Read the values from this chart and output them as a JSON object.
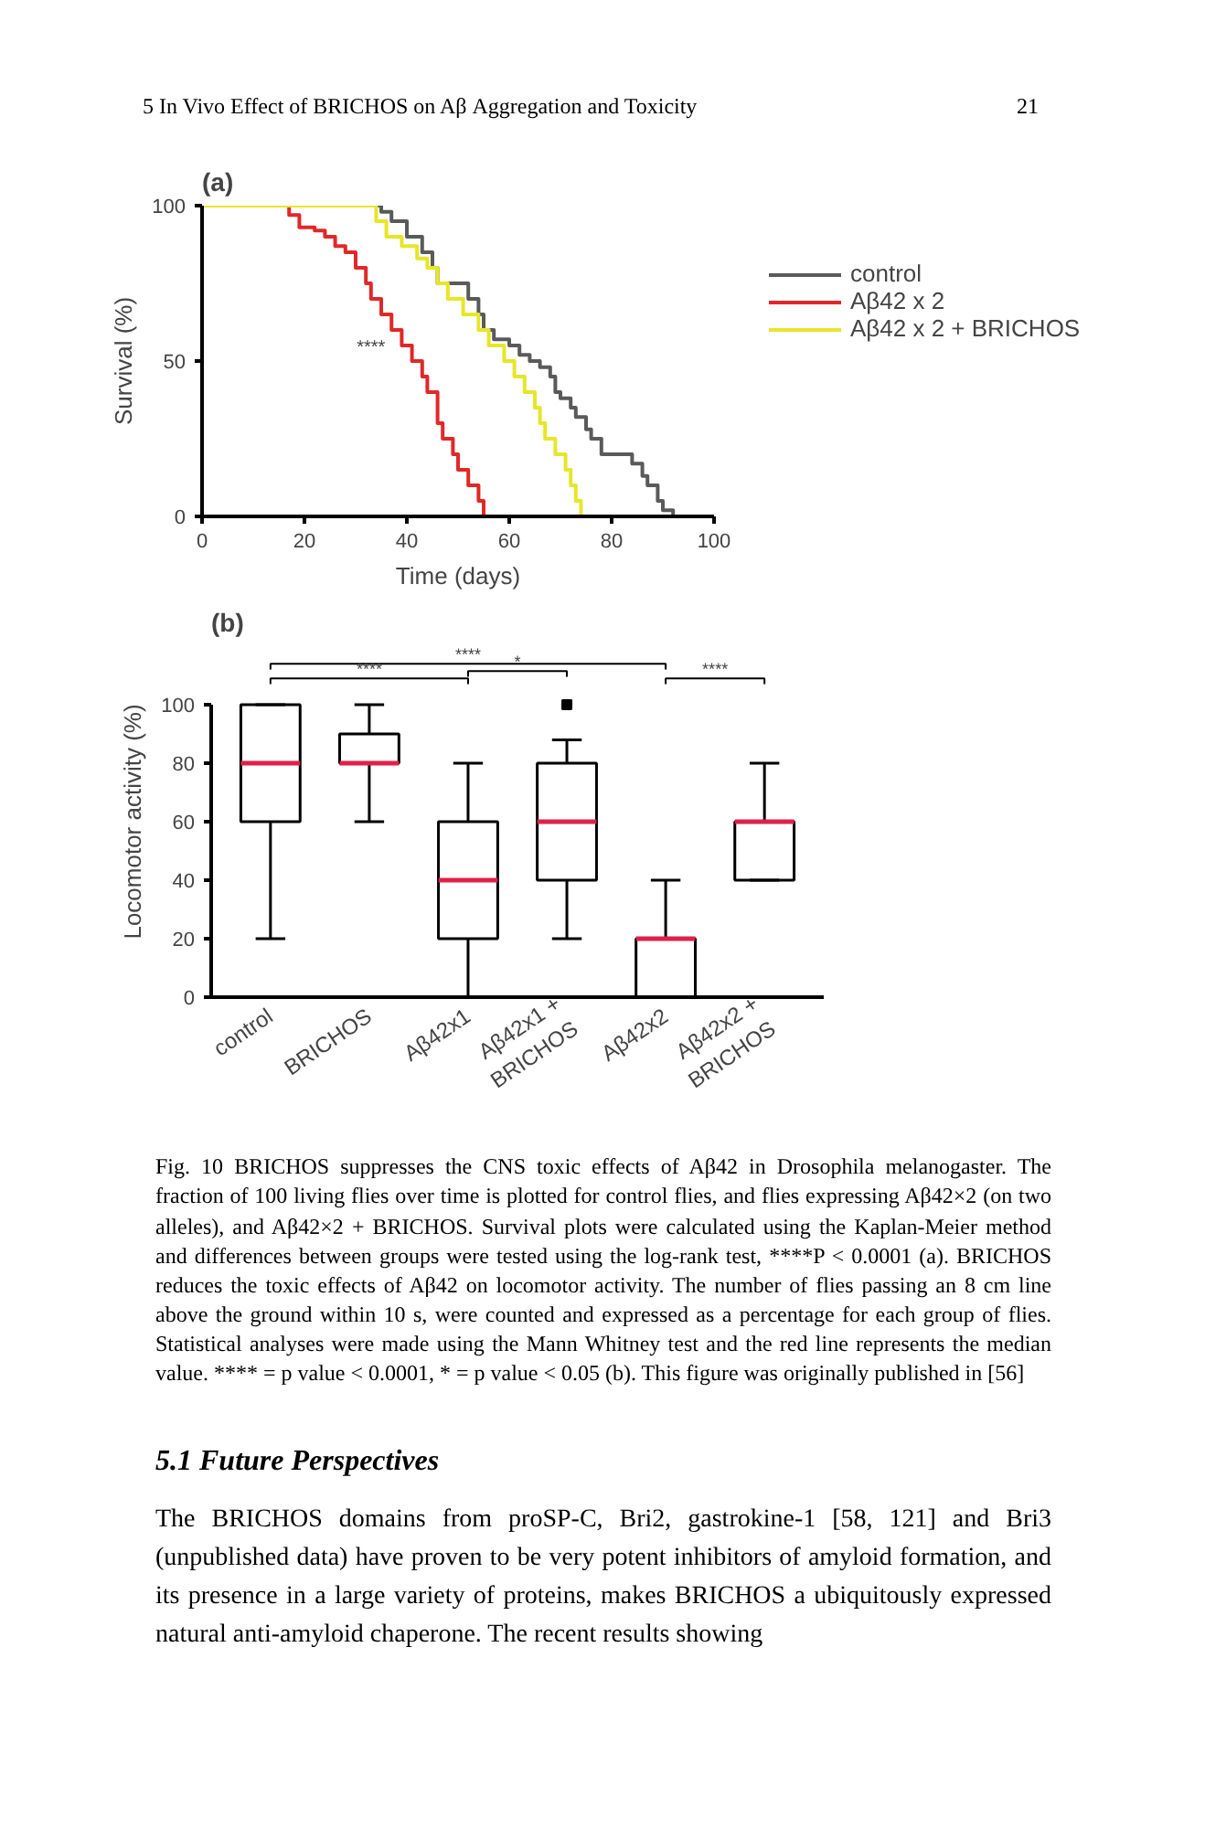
{
  "chart_data": [
    {
      "type": "step",
      "title": "(a)",
      "xlabel": "Time (days)",
      "ylabel": "Survival (%)",
      "xlim": [
        0,
        100
      ],
      "ylim": [
        0,
        100
      ],
      "xticks": [
        0,
        20,
        40,
        60,
        80,
        100
      ],
      "yticks": [
        0,
        50,
        100
      ],
      "legend": "top right",
      "annotations": [
        "5   In Vivo Effect of BRICHOS on Aβ Aggregation and Toxicity",
        "21",
        "****"
      ],
      "series": [
        {
          "name": "control",
          "color": "#5a5a5a",
          "x": [
            0,
            35,
            37,
            40,
            43,
            45,
            46,
            52,
            54,
            55,
            57,
            60,
            62,
            64,
            66,
            68,
            69,
            70,
            72,
            73,
            75,
            76,
            78,
            80,
            84,
            86,
            87,
            89,
            90,
            92
          ],
          "values": [
            100,
            98,
            95,
            90,
            85,
            80,
            75,
            70,
            65,
            60,
            57,
            55,
            52,
            50,
            48,
            45,
            40,
            38,
            35,
            32,
            28,
            25,
            20,
            20,
            17,
            13,
            10,
            5,
            2,
            0
          ]
        },
        {
          "name": "Aβ42 x 2",
          "color": "#e02828",
          "x": [
            0,
            17,
            19,
            22,
            24,
            26,
            28,
            30,
            32,
            33,
            35,
            37,
            39,
            41,
            43,
            44,
            46,
            47,
            49,
            50,
            52,
            54,
            55
          ],
          "values": [
            100,
            97,
            93,
            92,
            90,
            87,
            85,
            80,
            75,
            70,
            65,
            60,
            55,
            50,
            45,
            40,
            30,
            25,
            20,
            15,
            10,
            5,
            0
          ]
        },
        {
          "name": "Aβ42 x 2 + BRICHOS",
          "color": "#e6e62a",
          "x": [
            0,
            34,
            36,
            39,
            42,
            44,
            46,
            48,
            51,
            54,
            56,
            59,
            61,
            63,
            65,
            66,
            67,
            69,
            71,
            72,
            73,
            74
          ],
          "values": [
            100,
            95,
            90,
            87,
            83,
            80,
            75,
            70,
            65,
            60,
            55,
            50,
            45,
            40,
            35,
            30,
            25,
            20,
            15,
            10,
            5,
            0
          ]
        }
      ]
    },
    {
      "type": "box",
      "title": "(b)",
      "ylabel": "Locomotor activity (%)",
      "ylim": [
        0,
        100
      ],
      "yticks": [
        0,
        20,
        40,
        60,
        80,
        100
      ],
      "categories": [
        "control",
        "BRICHOS",
        "Aβ42x1",
        "Aβ42x1 +\nBRICHOS",
        "Aβ42x2",
        "Aβ42x2 +\nBRICHOS"
      ],
      "series": [
        {
          "color": "#000000",
          "boxes": [
            {
              "low": 20,
              "q1": 60,
              "median": 80,
              "q3": 100,
              "high": 100
            },
            {
              "low": 60,
              "q1": 80,
              "median": 80,
              "q3": 90,
              "high": 100
            },
            {
              "low": 0,
              "q1": 20,
              "median": 40,
              "q3": 60,
              "high": 80
            },
            {
              "low": 20,
              "q1": 40,
              "median": 60,
              "q3": 80,
              "high": 88,
              "outliers": [
                100
              ]
            },
            {
              "low": 0,
              "q1": 0,
              "median": 20,
              "q3": 20,
              "high": 40
            },
            {
              "low": 40,
              "q1": 40,
              "median": 60,
              "q3": 60,
              "high": 80
            }
          ]
        }
      ],
      "annotations": [
        "****",
        "****",
        "*",
        "****",
        "Fig. 10 BRICHOS suppresses the CNS toxic effects of Aβ42 in Drosophila melanogaster. The fraction of 100 living flies over time is plotted for control flies, and flies expressing Aβ42×2 (on two alleles), and Aβ42×2 + BRICHOS. Survival plots were calculated using the Kaplan-Meier method and differences between groups were tested using the log-rank test, ****P < 0.0001 (a). BRICHOS reduces the toxic effects of Aβ42 on locomotor activity. The number of flies passing an 8 cm line above the ground within 10 s, were counted and expressed as a percentage for each group of flies. Statistical analyses were made using the Mann Whitney test and the red line represents the median value. **** = p value < 0.0001, * = p value < 0.05 (b). This figure was originally published in [56]",
        "5.1 Future Perspectives",
        "The BRICHOS domains from proSP-C, Bri2, gastrokine-1 [58, 121] and Bri3 (unpublished data) have proven to be very potent inhibitors of amyloid formation, and its presence in a large variety of proteins, makes BRICHOS a ubiquitously expressed natural anti-amyloid chaperone. The recent results showing"
      ]
    }
  ]
}
